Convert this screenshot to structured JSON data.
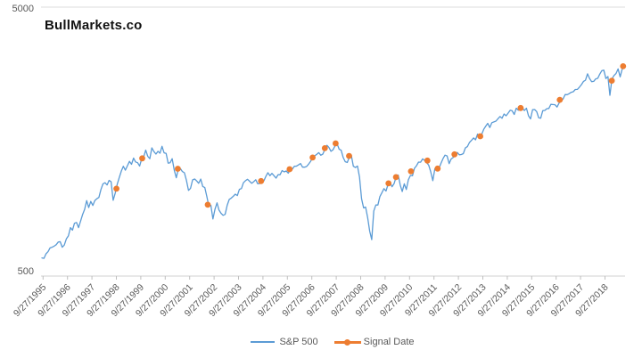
{
  "chart_data": {
    "type": "line",
    "title": "BullMarkets.co",
    "y_axis": {
      "scale": "log",
      "min": 500,
      "max": 5000,
      "ticks": [
        {
          "label": "5000",
          "value": 5000
        },
        {
          "label": "500",
          "value": 500
        }
      ],
      "gridlines": [
        5000
      ]
    },
    "x_axis": {
      "tick_labels": [
        "9/27/1995",
        "9/27/1996",
        "9/27/1997",
        "9/27/1998",
        "9/27/1999",
        "9/27/2000",
        "9/27/2001",
        "9/27/2002",
        "9/27/2003",
        "9/27/2004",
        "9/27/2005",
        "9/27/2006",
        "9/27/2007",
        "9/27/2008",
        "9/27/2009",
        "9/27/2010",
        "9/27/2011",
        "9/27/2012",
        "9/27/2013",
        "9/27/2014",
        "9/27/2015",
        "9/27/2016",
        "9/27/2017",
        "9/27/2018"
      ],
      "label_rotation_deg": -45
    },
    "legend": {
      "position": "bottom",
      "labels": [
        "S&P 500",
        "Signal Date"
      ]
    },
    "series": [
      {
        "name": "S&P 500",
        "type": "line",
        "color": "#5B9BD5",
        "start_date": "9/27/1995",
        "end_date": "7/2019",
        "frequency": "monthly",
        "values": [
          584,
          582,
          605,
          616,
          636,
          640,
          646,
          654,
          669,
          671,
          640,
          652,
          687,
          705,
          757,
          741,
          786,
          791,
          757,
          801,
          848,
          885,
          954,
          899,
          947,
          915,
          955,
          970,
          980,
          1049,
          1102,
          1112,
          1091,
          1134,
          1121,
          957,
          1017,
          1098,
          1164,
          1229,
          1280,
          1238,
          1286,
          1335,
          1302,
          1373,
          1329,
          1320,
          1283,
          1363,
          1389,
          1469,
          1394,
          1366,
          1499,
          1452,
          1421,
          1455,
          1431,
          1518,
          1436,
          1429,
          1315,
          1320,
          1366,
          1240,
          1160,
          1249,
          1256,
          1224,
          1211,
          1134,
          1041,
          1060,
          1139,
          1148,
          1130,
          1107,
          1147,
          1077,
          1067,
          990,
          912,
          916,
          815,
          886,
          936,
          880,
          856,
          841,
          848,
          917,
          964,
          975,
          990,
          1008,
          996,
          1051,
          1058,
          1112,
          1131,
          1145,
          1126,
          1107,
          1121,
          1141,
          1102,
          1104,
          1115,
          1130,
          1174,
          1212,
          1181,
          1204,
          1181,
          1157,
          1192,
          1191,
          1234,
          1220,
          1229,
          1207,
          1249,
          1248,
          1280,
          1281,
          1295,
          1311,
          1270,
          1270,
          1277,
          1304,
          1336,
          1378,
          1401,
          1418,
          1438,
          1407,
          1421,
          1482,
          1531,
          1503,
          1455,
          1474,
          1527,
          1549,
          1481,
          1468,
          1379,
          1331,
          1323,
          1386,
          1400,
          1280,
          1267,
          1283,
          1166,
          969,
          896,
          903,
          826,
          735,
          683,
          873,
          919,
          919,
          987,
          1021,
          1057,
          1036,
          1096,
          1115,
          1074,
          1104,
          1169,
          1187,
          1089,
          1031,
          1102,
          1049,
          1141,
          1183,
          1181,
          1258,
          1286,
          1327,
          1326,
          1364,
          1345,
          1321,
          1292,
          1219,
          1131,
          1253,
          1247,
          1258,
          1312,
          1366,
          1408,
          1398,
          1310,
          1362,
          1379,
          1407,
          1441,
          1412,
          1416,
          1426,
          1498,
          1515,
          1569,
          1598,
          1631,
          1606,
          1686,
          1633,
          1682,
          1757,
          1806,
          1848,
          1783,
          1859,
          1872,
          1884,
          1924,
          1960,
          1931,
          2003,
          1972,
          2018,
          2068,
          2059,
          1995,
          2105,
          2068,
          2086,
          2107,
          2063,
          2104,
          1972,
          1920,
          2079,
          2080,
          2044,
          1940,
          1932,
          2060,
          2065,
          2097,
          2099,
          2174,
          2171,
          2168,
          2126,
          2199,
          2239,
          2279,
          2364,
          2363,
          2384,
          2412,
          2423,
          2470,
          2472,
          2519,
          2575,
          2648,
          2674,
          2824,
          2714,
          2641,
          2648,
          2705,
          2718,
          2816,
          2902,
          2914,
          2712,
          2760,
          2351,
          2704,
          2784,
          2834,
          2946,
          2752,
          2942,
          3000
        ]
      },
      {
        "name": "Signal Date",
        "type": "scatter",
        "color": "#ED7D31",
        "points": [
          [
            "10/16/1998",
            1056
          ],
          [
            "11/5/1999",
            1370
          ],
          [
            "4/20/2001",
            1253
          ],
          [
            "7/12/2002",
            921
          ],
          [
            "9/17/2004",
            1128
          ],
          [
            "11/18/2005",
            1248
          ],
          [
            "10/27/2006",
            1379
          ],
          [
            "4/27/2007",
            1494
          ],
          [
            "10/5/2007",
            1557
          ],
          [
            "4/25/2008",
            1398
          ],
          [
            "12/4/2009",
            1106
          ],
          [
            "3/26/2010",
            1166
          ],
          [
            "11/5/2010",
            1226
          ],
          [
            "7/8/2011",
            1344
          ],
          [
            "12/9/2011",
            1255
          ],
          [
            "8/17/2012",
            1418
          ],
          [
            "9/6/2013",
            1655
          ],
          [
            "5/1/2015",
            2108
          ],
          [
            "12/9/2016",
            2260
          ],
          [
            "1/25/2019",
            2664
          ],
          [
            "7/12/2019",
            3014
          ]
        ]
      }
    ],
    "colors": {
      "sp500_line": "#5B9BD5",
      "signal_marker": "#ED7D31",
      "gridline": "#E3E3E3",
      "axis_line": "#D9D9D9",
      "tick_mark": "#BFBFBF",
      "axis_text": "#595959",
      "title_text": "#111111",
      "background": "#FFFFFF"
    }
  }
}
